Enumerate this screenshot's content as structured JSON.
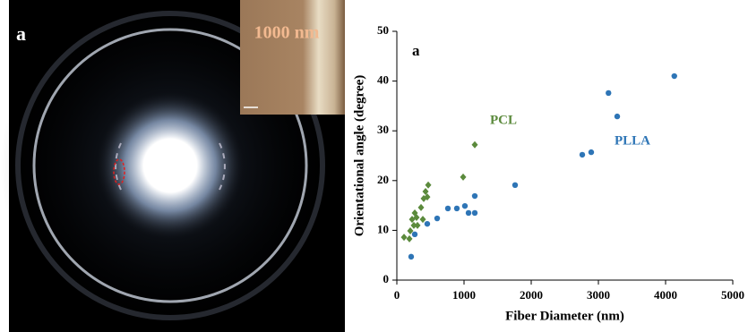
{
  "image_panel": {
    "label": "a",
    "inset_label": "1000 nm"
  },
  "chart_data": {
    "type": "scatter",
    "panel_label": "a",
    "x_label": "Fiber Diameter (nm)",
    "y_label": "Orientational angle (degree)",
    "xlim": [
      0,
      5000
    ],
    "xticks": [
      0,
      1000,
      2000,
      3000,
      4000,
      5000
    ],
    "ylim": [
      0,
      50
    ],
    "yticks": [
      0,
      10,
      20,
      30,
      40,
      50
    ],
    "annotations": [
      {
        "text": "PCL",
        "color": "#5b8a3c"
      },
      {
        "text": "PLLA",
        "color": "#2e75b6"
      }
    ],
    "series": [
      {
        "name": "PLLA",
        "color": "#2e75b6",
        "marker": "circle",
        "x": [
          213,
          267,
          453,
          600,
          760,
          893,
          1013,
          1067,
          1160,
          1160,
          1760,
          2760,
          2893,
          3150,
          3280,
          4130
        ],
        "values": [
          4.7,
          9.2,
          11.3,
          12.4,
          14.4,
          14.4,
          14.9,
          13.5,
          13.5,
          16.9,
          19.1,
          25.2,
          25.7,
          37.6,
          32.9,
          41
        ]
      },
      {
        "name": "PCL",
        "color": "#5b8a3c",
        "marker": "diamond",
        "x": [
          107,
          187,
          200,
          227,
          253,
          293,
          307,
          360,
          387,
          400,
          427,
          453,
          467,
          987,
          1160,
          267
        ],
        "values": [
          8.6,
          8.3,
          9.9,
          12.2,
          11,
          12.6,
          11,
          14.6,
          12.2,
          16.4,
          17.8,
          16.7,
          19.1,
          20.7,
          27.2,
          13.5
        ]
      }
    ]
  }
}
